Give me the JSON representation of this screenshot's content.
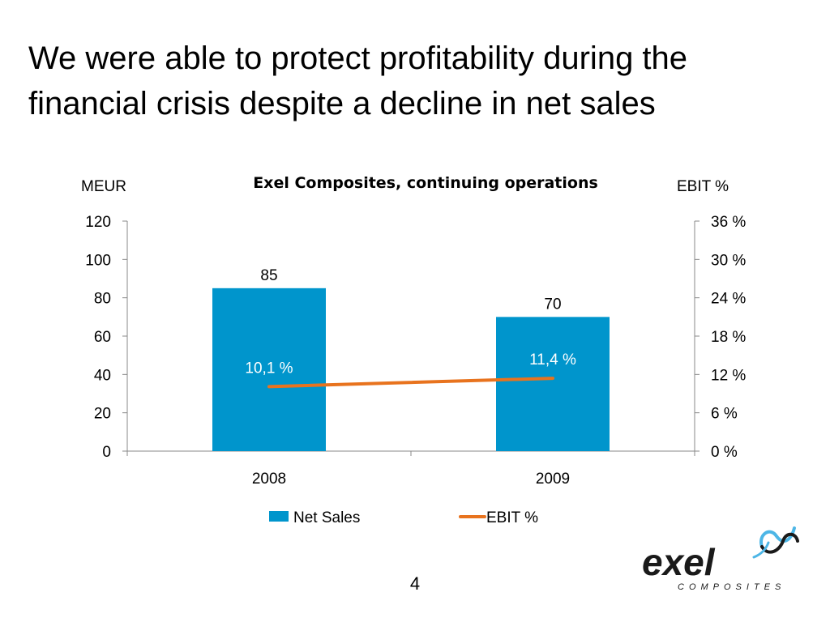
{
  "slide": {
    "title": "We were able to protect profitability during the financial crisis despite a decline in net sales",
    "page_number": "4"
  },
  "chart_data": {
    "type": "bar",
    "title": "Exel Composites, continuing operations",
    "categories": [
      "2008",
      "2009"
    ],
    "series": [
      {
        "name": "Net Sales",
        "type": "bar",
        "axis": "left",
        "color": "#0095CC",
        "values": [
          85,
          70
        ],
        "data_labels": [
          "85",
          "70"
        ]
      },
      {
        "name": "EBIT %",
        "type": "line",
        "axis": "right",
        "color": "#E8731E",
        "values": [
          10.1,
          11.4
        ],
        "data_labels": [
          "10,1 %",
          "11,4 %"
        ]
      }
    ],
    "y_left": {
      "label": "MEUR",
      "range": [
        0,
        120
      ],
      "ticks": [
        "0",
        "20",
        "40",
        "60",
        "80",
        "100",
        "120"
      ]
    },
    "y_right": {
      "label": "EBIT %",
      "range": [
        0,
        36
      ],
      "ticks": [
        "0 %",
        "6 %",
        "12 %",
        "18 %",
        "24 %",
        "30 %",
        "36 %"
      ]
    },
    "grid": false,
    "legend": "bottom"
  },
  "logo": {
    "wordmark": "exel",
    "tagline": "COMPOSITES",
    "colors": {
      "wordmark": "#1a1a1a",
      "swoosh": "#4DB6E6"
    }
  }
}
